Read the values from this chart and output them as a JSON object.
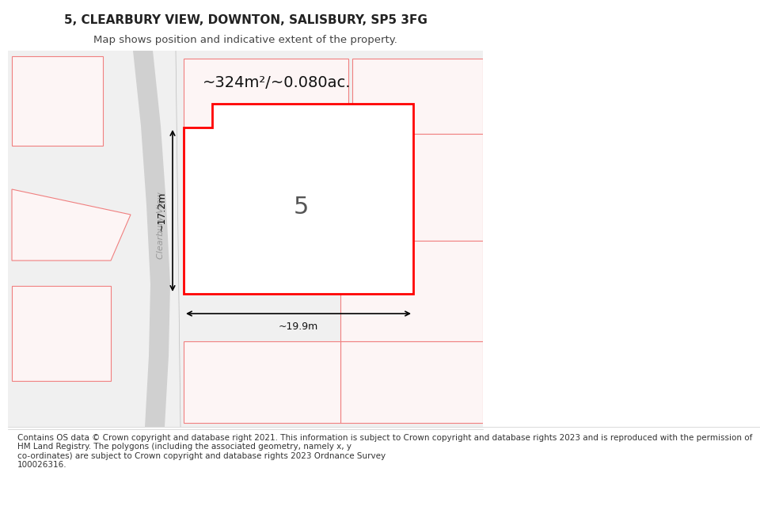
{
  "title": "5, CLEARBURY VIEW, DOWNTON, SALISBURY, SP5 3FG",
  "subtitle": "Map shows position and indicative extent of the property.",
  "footer": "Contains OS data © Crown copyright and database right 2021. This information is subject to Crown copyright and database rights 2023 and is reproduced with the permission of\nHM Land Registry. The polygons (including the associated geometry, namely x, y\nco-ordinates) are subject to Crown copyright and database rights 2023 Ordnance Survey\n100026316.",
  "area_text": "~324m²/~0.080ac.",
  "width_text": "~19.9m",
  "height_text": "~17.2m",
  "street_label": "Clearbury View",
  "plot_number": "5",
  "bg_color": "#ffffff",
  "map_bg": "#f0f0f0",
  "plot_fill": "#ffffff",
  "plot_outline": "#ff0000",
  "building_fill": "#e0e0e0",
  "neighbor_outline": "#f08080",
  "neighbor_fill": "#fdf5f5",
  "road_color": "#d8d8d8",
  "dim_line_color": "#000000",
  "title_fontsize": 11,
  "subtitle_fontsize": 9.5,
  "footer_fontsize": 7.5,
  "area_fontsize": 14,
  "plot_number_fontsize": 22,
  "street_label_fontsize": 8
}
